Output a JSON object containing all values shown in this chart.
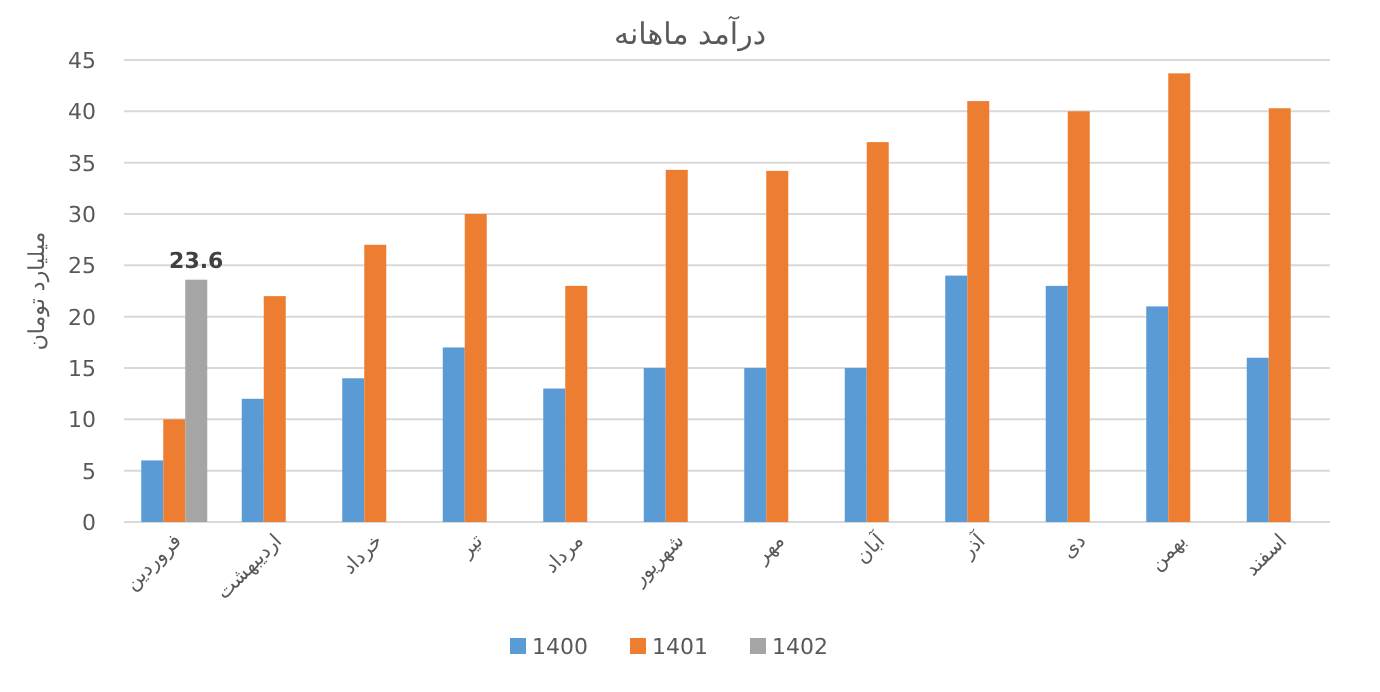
{
  "chart_data": {
    "type": "bar",
    "title": "درآمد ماهانه",
    "ylabel": "میلیارد تومان",
    "categories": [
      "فروردین",
      "اردیبهشت",
      "خرداد",
      "تیر",
      "مرداد",
      "شهریور",
      "مهر",
      "آبان",
      "آذر",
      "دی",
      "بهمن",
      "اسفند"
    ],
    "series": [
      {
        "name": "1400",
        "color": "#5b9bd5",
        "values": [
          6,
          12,
          14,
          17,
          13,
          15,
          15,
          15,
          24,
          23,
          21,
          16
        ]
      },
      {
        "name": "1401",
        "color": "#ed7d31",
        "values": [
          10,
          22,
          27,
          30,
          23,
          34.3,
          34.2,
          37,
          41,
          40,
          43.7,
          40.3
        ]
      },
      {
        "name": "1402",
        "color": "#a5a5a5",
        "values": [
          23.6,
          null,
          null,
          null,
          null,
          null,
          null,
          null,
          null,
          null,
          null,
          null
        ],
        "value_labels": [
          "23.6",
          null,
          null,
          null,
          null,
          null,
          null,
          null,
          null,
          null,
          null,
          null
        ]
      }
    ],
    "ylim": [
      0,
      45
    ],
    "yticks": [
      0,
      5,
      10,
      15,
      20,
      25,
      30,
      35,
      40,
      45
    ],
    "grid": "y",
    "legend": "bottom"
  }
}
